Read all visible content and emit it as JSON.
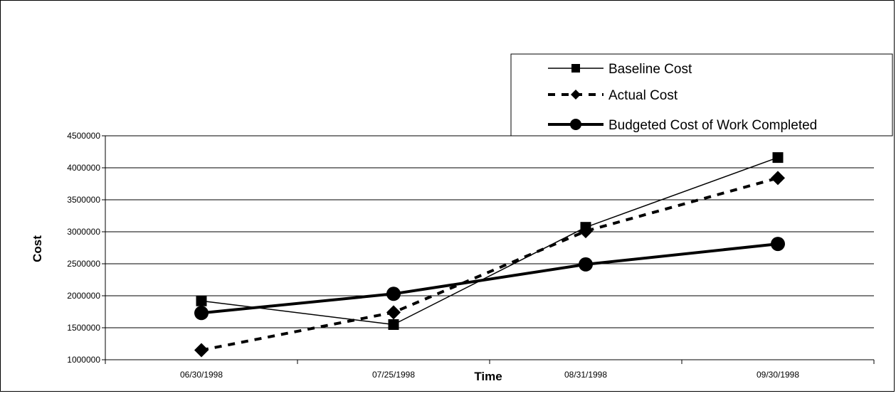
{
  "chart_data": {
    "type": "line",
    "title": "",
    "xlabel": "Time",
    "ylabel": "Cost",
    "categories": [
      "06/30/1998",
      "07/25/1998",
      "08/31/1998",
      "09/30/1998"
    ],
    "ylim": [
      1000000,
      4500000
    ],
    "yticks": [
      1000000,
      1500000,
      2000000,
      2500000,
      3000000,
      3500000,
      4000000,
      4500000
    ],
    "ytick_labels": [
      "1000000",
      "1500000",
      "2000000",
      "2500000",
      "3000000",
      "3500000",
      "4000000",
      "4500000"
    ],
    "grid": "horizontal",
    "legend_position": "top-right",
    "series": [
      {
        "name": "Baseline Cost",
        "values": [
          1920000,
          1550000,
          3070000,
          4160000
        ],
        "marker": "square",
        "line_style": "solid-thin",
        "color": "#000000"
      },
      {
        "name": "Actual Cost",
        "values": [
          1150000,
          1740000,
          3010000,
          3840000
        ],
        "marker": "diamond",
        "line_style": "dashed",
        "color": "#000000"
      },
      {
        "name": "Budgeted Cost of Work Completed",
        "values": [
          1730000,
          2030000,
          2490000,
          2810000
        ],
        "marker": "circle",
        "line_style": "solid-thick",
        "color": "#000000"
      }
    ]
  }
}
